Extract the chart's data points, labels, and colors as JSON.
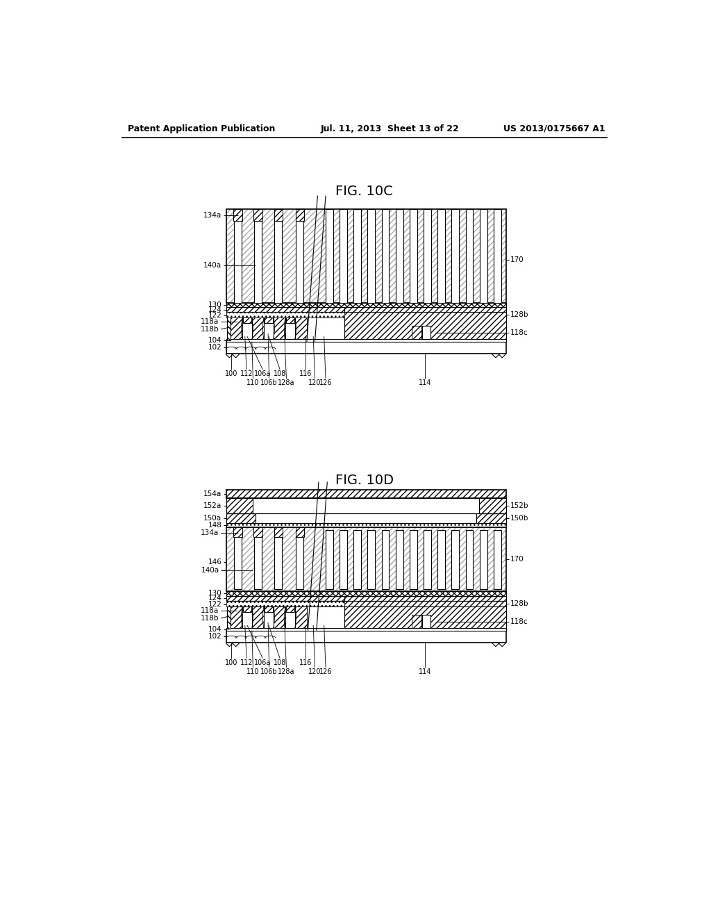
{
  "page_header_left": "Patent Application Publication",
  "page_header_mid": "Jul. 11, 2013  Sheet 13 of 22",
  "page_header_right": "US 2013/0175667 A1",
  "fig1_title": "FIG. 10C",
  "fig2_title": "FIG. 10D",
  "bg_color": "#ffffff"
}
